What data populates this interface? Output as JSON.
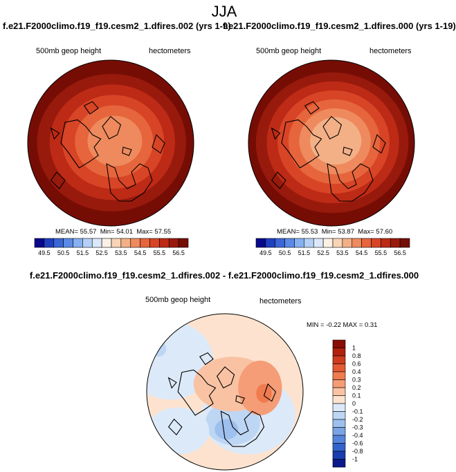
{
  "title": "JJA",
  "panels": [
    {
      "case_title": "f.e21.F2000climo.f19_f19.cesm2_1.dfires.002 (yrs 1-9)",
      "variable": "500mb geop height",
      "units": "hectometers",
      "mean_label": "MEAN=",
      "mean": "55.57",
      "min_label": "Min=",
      "min": "54.01",
      "max_label": "Max=",
      "max": "57.55"
    },
    {
      "case_title": "f.e21.F2000climo.f19_f19.cesm2_1.dfires.000 (yrs 1-19)",
      "variable": "500mb geop height",
      "units": "hectometers",
      "mean_label": "MEAN=",
      "mean": "55.53",
      "min_label": "Min=",
      "min": "53.87",
      "max_label": "Max=",
      "max": "57.60"
    }
  ],
  "difference": {
    "title": "f.e21.F2000climo.f19_f19.cesm2_1.dfires.002 - f.e21.F2000climo.f19_f19.cesm2_1.dfires.000",
    "variable": "500mb geop height",
    "units": "hectometers",
    "min_label": "MIN =",
    "min": "-0.22",
    "max_label": "MAX =",
    "max": "0.31"
  },
  "chart_data": [
    {
      "type": "heatmap",
      "projection": "north polar stereographic",
      "title": "f.e21.F2000climo.f19_f19.cesm2_1.dfires.002 (yrs 1-9)",
      "variable": "500mb geop height",
      "units": "hectometers",
      "stats": {
        "mean": 55.57,
        "min": 54.01,
        "max": 57.55
      },
      "ring_levels": [
        56.5,
        56.0,
        55.5,
        55.0,
        54.5
      ],
      "colorbar_levels": [
        49.5,
        50.0,
        50.5,
        51.0,
        51.5,
        52.0,
        52.5,
        53.0,
        53.5,
        54.0,
        54.5,
        55.0,
        55.5,
        56.0,
        56.5
      ],
      "colorbar_labels": [
        "49.5",
        "50.5",
        "51.5",
        "52.5",
        "53.5",
        "54.5",
        "55.5",
        "56.5"
      ],
      "colorbar_colors": [
        "#08088a",
        "#1f3fbf",
        "#3a66d6",
        "#5a8ae6",
        "#86b0f0",
        "#b4d0f6",
        "#dae8fa",
        "#fdf0e4",
        "#f8d4b6",
        "#f3b087",
        "#ee8a5e",
        "#e6653c",
        "#d84426",
        "#bd2a16",
        "#981a0c",
        "#760d05"
      ]
    },
    {
      "type": "heatmap",
      "projection": "north polar stereographic",
      "title": "f.e21.F2000climo.f19_f19.cesm2_1.dfires.000 (yrs 1-19)",
      "variable": "500mb geop height",
      "units": "hectometers",
      "stats": {
        "mean": 55.53,
        "min": 53.87,
        "max": 57.6
      },
      "ring_levels": [
        56.5,
        56.0,
        55.5,
        55.0,
        54.5,
        54.0
      ],
      "colorbar_levels": [
        49.5,
        50.0,
        50.5,
        51.0,
        51.5,
        52.0,
        52.5,
        53.0,
        53.5,
        54.0,
        54.5,
        55.0,
        55.5,
        56.0,
        56.5
      ],
      "colorbar_labels": [
        "49.5",
        "50.5",
        "51.5",
        "52.5",
        "53.5",
        "54.5",
        "55.5",
        "56.5"
      ],
      "colorbar_colors": [
        "#08088a",
        "#1f3fbf",
        "#3a66d6",
        "#5a8ae6",
        "#86b0f0",
        "#b4d0f6",
        "#dae8fa",
        "#fdf0e4",
        "#f8d4b6",
        "#f3b087",
        "#ee8a5e",
        "#e6653c",
        "#d84426",
        "#bd2a16",
        "#981a0c",
        "#760d05"
      ]
    },
    {
      "type": "heatmap",
      "projection": "north polar stereographic",
      "title": "f.e21.F2000climo.f19_f19.cesm2_1.dfires.002 - f.e21.F2000climo.f19_f19.cesm2_1.dfires.000",
      "variable": "500mb geop height",
      "units": "hectometers",
      "stats": {
        "min": -0.22,
        "max": 0.31
      },
      "colorbar_levels": [
        1,
        0.8,
        0.6,
        0.4,
        0.3,
        0.2,
        0.1,
        0,
        -0.1,
        -0.2,
        -0.3,
        -0.4,
        -0.6,
        -0.8,
        -1
      ],
      "colorbar_labels": [
        "1",
        "0.8",
        "0.6",
        "0.4",
        "0.3",
        "0.2",
        "0.1",
        "0",
        "-0.1",
        "-0.2",
        "-0.3",
        "-0.4",
        "-0.6",
        "-0.8",
        "-1"
      ],
      "colorbar_colors": [
        "#8a0d05",
        "#b31f0e",
        "#cf3a1d",
        "#e45a32",
        "#f07b4f",
        "#f59d76",
        "#f9c2a3",
        "#fde3cf",
        "#dce9f8",
        "#bdd6f4",
        "#9ec0ee",
        "#7ba4e6",
        "#5585dc",
        "#3064cc",
        "#1a3eb0",
        "#0b1a8a"
      ]
    }
  ]
}
